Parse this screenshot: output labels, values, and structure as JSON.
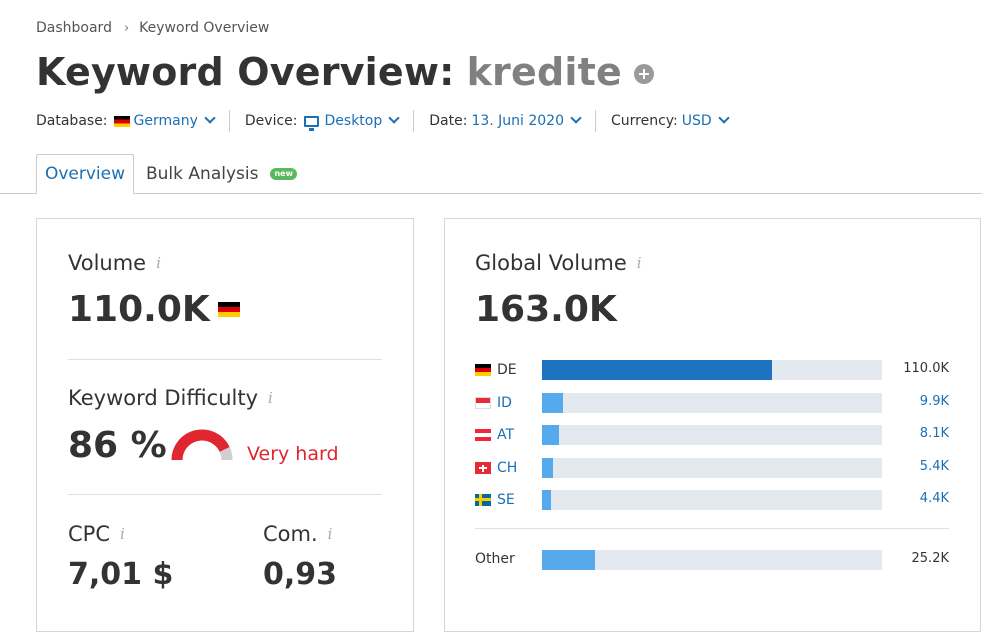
{
  "breadcrumb": {
    "home": "Dashboard",
    "current": "Keyword Overview"
  },
  "header": {
    "title": "Keyword Overview:",
    "keyword": "kredite"
  },
  "filters": {
    "database_label": "Database:",
    "database_value": "Germany",
    "device_label": "Device:",
    "device_value": "Desktop",
    "date_label": "Date:",
    "date_value": "13. Juni 2020",
    "currency_label": "Currency:",
    "currency_value": "USD"
  },
  "tabs": [
    {
      "label": "Overview",
      "active": true
    },
    {
      "label": "Bulk Analysis",
      "badge": "new"
    }
  ],
  "metrics": {
    "volume_label": "Volume",
    "volume_value": "110.0K",
    "kd_label": "Keyword Difficulty",
    "kd_value": "86 %",
    "kd_percent": 86,
    "kd_text": "Very hard",
    "cpc_label": "CPC",
    "cpc_value": "7,01 $",
    "com_label": "Com.",
    "com_value": "0,93",
    "info_glyph": "i"
  },
  "global_volume": {
    "label": "Global Volume",
    "value": "163.0K",
    "rows": [
      {
        "code": "DE",
        "value": "110.0K",
        "fraction": 0.676
      },
      {
        "code": "ID",
        "value": "9.9K",
        "fraction": 0.061
      },
      {
        "code": "AT",
        "value": "8.1K",
        "fraction": 0.05
      },
      {
        "code": "CH",
        "value": "5.4K",
        "fraction": 0.033
      },
      {
        "code": "SE",
        "value": "4.4K",
        "fraction": 0.027
      }
    ],
    "other": {
      "label": "Other",
      "value": "25.2K",
      "fraction": 0.155
    }
  },
  "colors": {
    "accent": "#1a6fb5",
    "bar_primary": "#1c73c0",
    "bar_secondary": "#55aaee",
    "track": "#e3e9ef",
    "danger": "#e0262f"
  }
}
